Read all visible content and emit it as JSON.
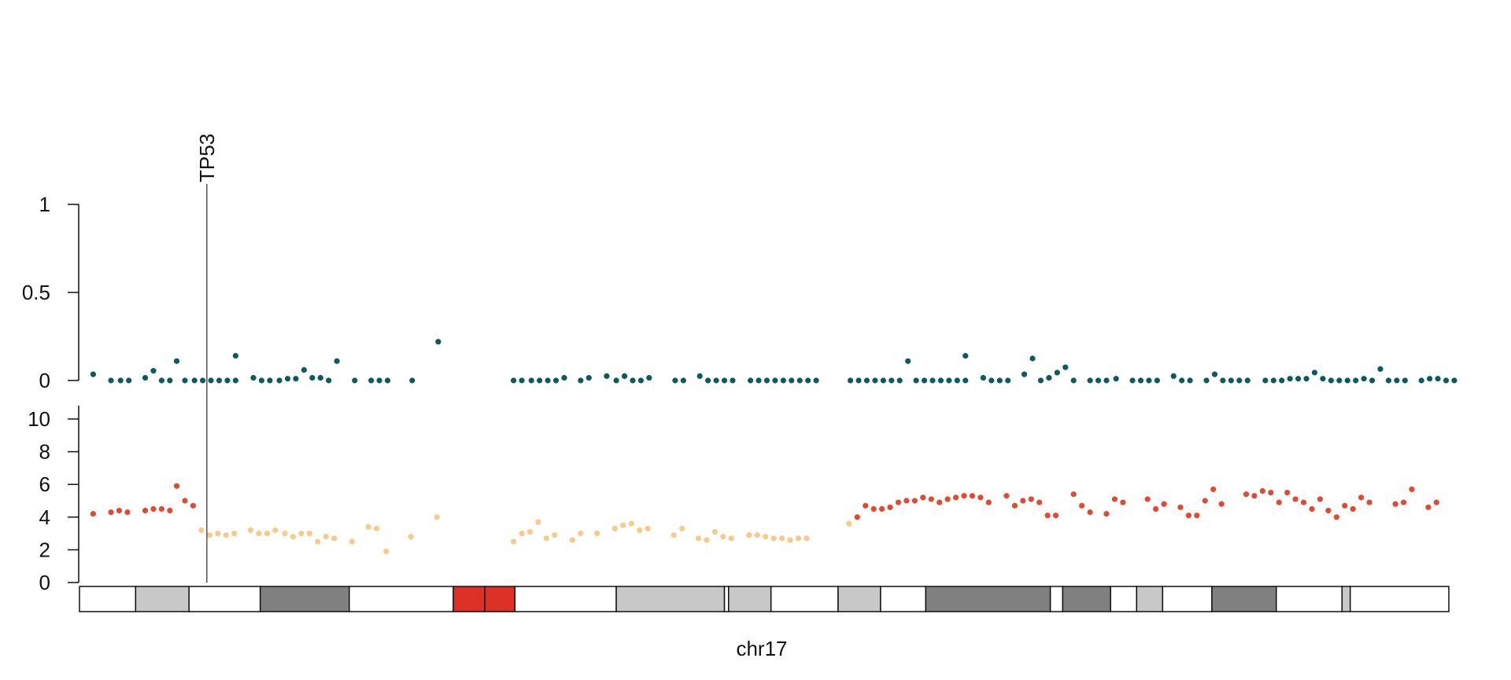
{
  "chart_data": {
    "type": "scatter",
    "chromosome": "chr17",
    "gene_marker": {
      "label": "TP53",
      "position": 0.093
    },
    "top_panel": {
      "yticks": [
        0,
        0.5,
        1
      ],
      "ylim": [
        0,
        1
      ],
      "point_color": "#0b5a5e",
      "points": [
        [
          0.01,
          0.035
        ],
        [
          0.023,
          0.0
        ],
        [
          0.03,
          0.0
        ],
        [
          0.036,
          0.0
        ],
        [
          0.048,
          0.015
        ],
        [
          0.054,
          0.055
        ],
        [
          0.06,
          0.0
        ],
        [
          0.066,
          0.0
        ],
        [
          0.071,
          0.11
        ],
        [
          0.077,
          0.0
        ],
        [
          0.084,
          0.0
        ],
        [
          0.09,
          0.0
        ],
        [
          0.096,
          0.0
        ],
        [
          0.102,
          0.0
        ],
        [
          0.108,
          0.0
        ],
        [
          0.114,
          0.0
        ],
        [
          0.114,
          0.14
        ],
        [
          0.127,
          0.015
        ],
        [
          0.133,
          0.0
        ],
        [
          0.139,
          0.0
        ],
        [
          0.146,
          0.0
        ],
        [
          0.152,
          0.01
        ],
        [
          0.158,
          0.01
        ],
        [
          0.164,
          0.06
        ],
        [
          0.17,
          0.015
        ],
        [
          0.176,
          0.015
        ],
        [
          0.182,
          0.0
        ],
        [
          0.188,
          0.11
        ],
        [
          0.201,
          0.0
        ],
        [
          0.213,
          0.0
        ],
        [
          0.219,
          0.0
        ],
        [
          0.225,
          0.0
        ],
        [
          0.243,
          0.0
        ],
        [
          0.262,
          0.22
        ],
        [
          0.317,
          0.0
        ],
        [
          0.323,
          0.0
        ],
        [
          0.33,
          0.0
        ],
        [
          0.336,
          0.0
        ],
        [
          0.342,
          0.0
        ],
        [
          0.348,
          0.0
        ],
        [
          0.354,
          0.015
        ],
        [
          0.366,
          0.0
        ],
        [
          0.372,
          0.015
        ],
        [
          0.385,
          0.025
        ],
        [
          0.392,
          0.0
        ],
        [
          0.398,
          0.025
        ],
        [
          0.404,
          0.0
        ],
        [
          0.41,
          0.0
        ],
        [
          0.416,
          0.015
        ],
        [
          0.435,
          0.0
        ],
        [
          0.441,
          0.0
        ],
        [
          0.453,
          0.025
        ],
        [
          0.459,
          0.0
        ],
        [
          0.465,
          0.0
        ],
        [
          0.471,
          0.0
        ],
        [
          0.477,
          0.0
        ],
        [
          0.49,
          0.0
        ],
        [
          0.496,
          0.0
        ],
        [
          0.502,
          0.0
        ],
        [
          0.508,
          0.0
        ],
        [
          0.514,
          0.0
        ],
        [
          0.52,
          0.0
        ],
        [
          0.526,
          0.0
        ],
        [
          0.532,
          0.0
        ],
        [
          0.538,
          0.0
        ],
        [
          0.563,
          0.0
        ],
        [
          0.569,
          0.0
        ],
        [
          0.575,
          0.0
        ],
        [
          0.581,
          0.0
        ],
        [
          0.587,
          0.0
        ],
        [
          0.593,
          0.0
        ],
        [
          0.599,
          0.0
        ],
        [
          0.605,
          0.11
        ],
        [
          0.611,
          0.0
        ],
        [
          0.617,
          0.0
        ],
        [
          0.623,
          0.0
        ],
        [
          0.629,
          0.0
        ],
        [
          0.635,
          0.0
        ],
        [
          0.641,
          0.0
        ],
        [
          0.647,
          0.0
        ],
        [
          0.647,
          0.14
        ],
        [
          0.66,
          0.015
        ],
        [
          0.666,
          0.0
        ],
        [
          0.672,
          0.0
        ],
        [
          0.678,
          0.0
        ],
        [
          0.69,
          0.035
        ],
        [
          0.696,
          0.125
        ],
        [
          0.702,
          0.0
        ],
        [
          0.708,
          0.015
        ],
        [
          0.714,
          0.045
        ],
        [
          0.72,
          0.075
        ],
        [
          0.726,
          0.0
        ],
        [
          0.738,
          0.0
        ],
        [
          0.744,
          0.0
        ],
        [
          0.75,
          0.0
        ],
        [
          0.757,
          0.01
        ],
        [
          0.769,
          0.0
        ],
        [
          0.775,
          0.0
        ],
        [
          0.781,
          0.0
        ],
        [
          0.787,
          0.0
        ],
        [
          0.799,
          0.025
        ],
        [
          0.805,
          0.0
        ],
        [
          0.811,
          0.0
        ],
        [
          0.823,
          0.0
        ],
        [
          0.829,
          0.035
        ],
        [
          0.835,
          0.0
        ],
        [
          0.841,
          0.0
        ],
        [
          0.847,
          0.0
        ],
        [
          0.853,
          0.0
        ],
        [
          0.866,
          0.0
        ],
        [
          0.872,
          0.0
        ],
        [
          0.878,
          0.0
        ],
        [
          0.884,
          0.01
        ],
        [
          0.89,
          0.01
        ],
        [
          0.896,
          0.01
        ],
        [
          0.902,
          0.045
        ],
        [
          0.908,
          0.01
        ],
        [
          0.914,
          0.0
        ],
        [
          0.92,
          0.0
        ],
        [
          0.926,
          0.0
        ],
        [
          0.932,
          0.0
        ],
        [
          0.938,
          0.01
        ],
        [
          0.944,
          0.0
        ],
        [
          0.95,
          0.065
        ],
        [
          0.956,
          0.0
        ],
        [
          0.962,
          0.0
        ],
        [
          0.968,
          0.0
        ],
        [
          0.98,
          0.0
        ],
        [
          0.986,
          0.01
        ],
        [
          0.992,
          0.01
        ],
        [
          0.998,
          0.0
        ],
        [
          1.004,
          0.0
        ]
      ]
    },
    "bottom_panel": {
      "yticks": [
        0,
        2,
        4,
        6,
        8,
        10
      ],
      "ylim": [
        0,
        11
      ],
      "gain_color": "#e04a32",
      "neutral_color": "#f9c98a",
      "points": [
        [
          0.01,
          4.2,
          "gain"
        ],
        [
          0.023,
          4.3,
          "gain"
        ],
        [
          0.029,
          4.4,
          "gain"
        ],
        [
          0.035,
          4.3,
          "gain"
        ],
        [
          0.048,
          4.4,
          "gain"
        ],
        [
          0.054,
          4.5,
          "gain"
        ],
        [
          0.06,
          4.5,
          "gain"
        ],
        [
          0.066,
          4.4,
          "gain"
        ],
        [
          0.071,
          5.9,
          "gain"
        ],
        [
          0.077,
          5.0,
          "gain"
        ],
        [
          0.083,
          4.7,
          "gain"
        ],
        [
          0.089,
          3.2,
          "neutral"
        ],
        [
          0.095,
          2.9,
          "neutral"
        ],
        [
          0.101,
          3.0,
          "neutral"
        ],
        [
          0.107,
          2.9,
          "neutral"
        ],
        [
          0.113,
          3.0,
          "neutral"
        ],
        [
          0.125,
          3.2,
          "neutral"
        ],
        [
          0.131,
          3.0,
          "neutral"
        ],
        [
          0.137,
          3.0,
          "neutral"
        ],
        [
          0.143,
          3.2,
          "neutral"
        ],
        [
          0.15,
          3.0,
          "neutral"
        ],
        [
          0.156,
          2.8,
          "neutral"
        ],
        [
          0.162,
          3.0,
          "neutral"
        ],
        [
          0.168,
          3.0,
          "neutral"
        ],
        [
          0.174,
          2.5,
          "neutral"
        ],
        [
          0.18,
          2.8,
          "neutral"
        ],
        [
          0.186,
          2.7,
          "neutral"
        ],
        [
          0.199,
          2.5,
          "neutral"
        ],
        [
          0.211,
          3.4,
          "neutral"
        ],
        [
          0.217,
          3.3,
          "neutral"
        ],
        [
          0.224,
          1.9,
          "neutral"
        ],
        [
          0.242,
          2.8,
          "neutral"
        ],
        [
          0.261,
          4.0,
          "neutral"
        ],
        [
          0.317,
          2.5,
          "neutral"
        ],
        [
          0.323,
          3.0,
          "neutral"
        ],
        [
          0.329,
          3.1,
          "neutral"
        ],
        [
          0.335,
          3.7,
          "neutral"
        ],
        [
          0.341,
          2.7,
          "neutral"
        ],
        [
          0.347,
          2.9,
          "neutral"
        ],
        [
          0.36,
          2.6,
          "neutral"
        ],
        [
          0.366,
          3.0,
          "neutral"
        ],
        [
          0.378,
          3.0,
          "neutral"
        ],
        [
          0.391,
          3.3,
          "neutral"
        ],
        [
          0.397,
          3.5,
          "neutral"
        ],
        [
          0.403,
          3.6,
          "neutral"
        ],
        [
          0.409,
          3.2,
          "neutral"
        ],
        [
          0.415,
          3.3,
          "neutral"
        ],
        [
          0.434,
          2.9,
          "neutral"
        ],
        [
          0.44,
          3.3,
          "neutral"
        ],
        [
          0.452,
          2.7,
          "neutral"
        ],
        [
          0.458,
          2.6,
          "neutral"
        ],
        [
          0.464,
          3.1,
          "neutral"
        ],
        [
          0.47,
          2.8,
          "neutral"
        ],
        [
          0.476,
          2.7,
          "neutral"
        ],
        [
          0.489,
          2.9,
          "neutral"
        ],
        [
          0.495,
          2.9,
          "neutral"
        ],
        [
          0.501,
          2.8,
          "neutral"
        ],
        [
          0.507,
          2.7,
          "neutral"
        ],
        [
          0.513,
          2.7,
          "neutral"
        ],
        [
          0.519,
          2.6,
          "neutral"
        ],
        [
          0.525,
          2.7,
          "neutral"
        ],
        [
          0.531,
          2.7,
          "neutral"
        ],
        [
          0.562,
          3.6,
          "neutral"
        ],
        [
          0.568,
          4.0,
          "gain"
        ],
        [
          0.574,
          4.7,
          "gain"
        ],
        [
          0.58,
          4.5,
          "gain"
        ],
        [
          0.586,
          4.5,
          "gain"
        ],
        [
          0.592,
          4.6,
          "gain"
        ],
        [
          0.598,
          4.9,
          "gain"
        ],
        [
          0.604,
          5.0,
          "gain"
        ],
        [
          0.61,
          5.0,
          "gain"
        ],
        [
          0.616,
          5.2,
          "gain"
        ],
        [
          0.622,
          5.1,
          "gain"
        ],
        [
          0.628,
          4.9,
          "gain"
        ],
        [
          0.634,
          5.1,
          "gain"
        ],
        [
          0.64,
          5.2,
          "gain"
        ],
        [
          0.646,
          5.3,
          "gain"
        ],
        [
          0.652,
          5.3,
          "gain"
        ],
        [
          0.658,
          5.2,
          "gain"
        ],
        [
          0.664,
          4.9,
          "gain"
        ],
        [
          0.677,
          5.3,
          "gain"
        ],
        [
          0.683,
          4.7,
          "gain"
        ],
        [
          0.689,
          5.0,
          "gain"
        ],
        [
          0.695,
          5.1,
          "gain"
        ],
        [
          0.701,
          4.9,
          "gain"
        ],
        [
          0.707,
          4.1,
          "gain"
        ],
        [
          0.713,
          4.1,
          "gain"
        ],
        [
          0.726,
          5.4,
          "gain"
        ],
        [
          0.732,
          4.7,
          "gain"
        ],
        [
          0.738,
          4.3,
          "gain"
        ],
        [
          0.75,
          4.2,
          "gain"
        ],
        [
          0.756,
          5.1,
          "gain"
        ],
        [
          0.762,
          4.9,
          "gain"
        ],
        [
          0.78,
          5.1,
          "gain"
        ],
        [
          0.786,
          4.5,
          "gain"
        ],
        [
          0.792,
          4.8,
          "gain"
        ],
        [
          0.804,
          4.6,
          "gain"
        ],
        [
          0.81,
          4.1,
          "gain"
        ],
        [
          0.816,
          4.1,
          "gain"
        ],
        [
          0.822,
          5.0,
          "gain"
        ],
        [
          0.828,
          5.7,
          "gain"
        ],
        [
          0.834,
          4.8,
          "gain"
        ],
        [
          0.852,
          5.4,
          "gain"
        ],
        [
          0.858,
          5.3,
          "gain"
        ],
        [
          0.864,
          5.6,
          "gain"
        ],
        [
          0.87,
          5.5,
          "gain"
        ],
        [
          0.876,
          4.9,
          "gain"
        ],
        [
          0.882,
          5.5,
          "gain"
        ],
        [
          0.888,
          5.1,
          "gain"
        ],
        [
          0.894,
          4.9,
          "gain"
        ],
        [
          0.9,
          4.5,
          "gain"
        ],
        [
          0.906,
          5.1,
          "gain"
        ],
        [
          0.912,
          4.4,
          "gain"
        ],
        [
          0.918,
          4.0,
          "gain"
        ],
        [
          0.924,
          4.7,
          "gain"
        ],
        [
          0.93,
          4.5,
          "gain"
        ],
        [
          0.936,
          5.2,
          "gain"
        ],
        [
          0.942,
          4.9,
          "gain"
        ],
        [
          0.961,
          4.8,
          "gain"
        ],
        [
          0.967,
          4.9,
          "gain"
        ],
        [
          0.973,
          5.7,
          "gain"
        ],
        [
          0.985,
          4.6,
          "gain"
        ],
        [
          0.991,
          4.9,
          "gain"
        ]
      ]
    },
    "ideogram": {
      "bands": [
        [
          0.0,
          0.041,
          "#ffffff"
        ],
        [
          0.041,
          0.08,
          "#c8c8c8"
        ],
        [
          0.08,
          0.132,
          "#ffffff"
        ],
        [
          0.132,
          0.197,
          "#808080"
        ],
        [
          0.197,
          0.273,
          "#ffffff"
        ],
        [
          0.273,
          0.296,
          "#dd3128"
        ],
        [
          0.296,
          0.318,
          "#dd3128"
        ],
        [
          0.318,
          0.392,
          "#ffffff"
        ],
        [
          0.392,
          0.471,
          "#c8c8c8"
        ],
        [
          0.471,
          0.474,
          "#ffffff"
        ],
        [
          0.474,
          0.505,
          "#c8c8c8"
        ],
        [
          0.505,
          0.554,
          "#ffffff"
        ],
        [
          0.554,
          0.585,
          "#c8c8c8"
        ],
        [
          0.585,
          0.618,
          "#ffffff"
        ],
        [
          0.618,
          0.709,
          "#808080"
        ],
        [
          0.709,
          0.718,
          "#ffffff"
        ],
        [
          0.718,
          0.753,
          "#808080"
        ],
        [
          0.753,
          0.772,
          "#ffffff"
        ],
        [
          0.772,
          0.791,
          "#c8c8c8"
        ],
        [
          0.791,
          0.827,
          "#ffffff"
        ],
        [
          0.827,
          0.874,
          "#808080"
        ],
        [
          0.874,
          0.922,
          "#ffffff"
        ],
        [
          0.922,
          0.928,
          "#c8c8c8"
        ],
        [
          0.928,
          1.0,
          "#ffffff"
        ]
      ]
    }
  }
}
